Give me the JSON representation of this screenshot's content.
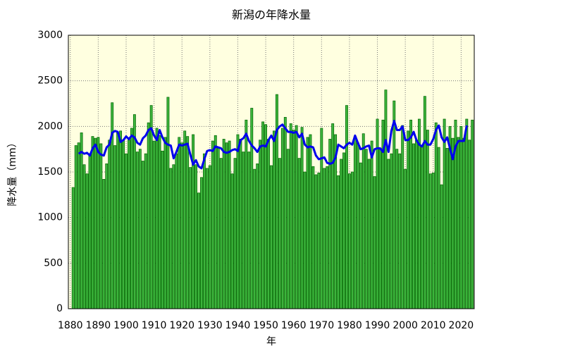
{
  "chart_data": {
    "type": "bar",
    "title": "新潟の年降水量",
    "xlabel": "年",
    "ylabel": "降水量（mm）",
    "x": [
      1881,
      1882,
      1883,
      1884,
      1885,
      1886,
      1887,
      1888,
      1889,
      1890,
      1891,
      1892,
      1893,
      1894,
      1895,
      1896,
      1897,
      1898,
      1899,
      1900,
      1901,
      1902,
      1903,
      1904,
      1905,
      1906,
      1907,
      1908,
      1909,
      1910,
      1911,
      1912,
      1913,
      1914,
      1915,
      1916,
      1917,
      1918,
      1919,
      1920,
      1921,
      1922,
      1923,
      1924,
      1925,
      1926,
      1927,
      1928,
      1929,
      1930,
      1931,
      1932,
      1933,
      1934,
      1935,
      1936,
      1937,
      1938,
      1939,
      1940,
      1941,
      1942,
      1943,
      1944,
      1945,
      1946,
      1947,
      1948,
      1949,
      1950,
      1951,
      1952,
      1953,
      1954,
      1955,
      1956,
      1957,
      1958,
      1959,
      1960,
      1961,
      1962,
      1963,
      1964,
      1965,
      1966,
      1967,
      1968,
      1969,
      1970,
      1971,
      1972,
      1973,
      1974,
      1975,
      1976,
      1977,
      1978,
      1979,
      1980,
      1981,
      1982,
      1983,
      1984,
      1985,
      1986,
      1987,
      1988,
      1989,
      1990,
      1991,
      1992,
      1993,
      1994,
      1995,
      1996,
      1997,
      1998,
      1999,
      2000,
      2001,
      2002,
      2003,
      2004,
      2005,
      2006,
      2007,
      2008,
      2009,
      2010,
      2011,
      2012,
      2013,
      2014,
      2015,
      2016,
      2017,
      2018,
      2019,
      2020,
      2021,
      2022,
      2023,
      2024
    ],
    "series": [
      {
        "type": "bar",
        "color": "#3cb43c",
        "values": [
          1330,
          1790,
          1820,
          1930,
          1580,
          1480,
          1700,
          1890,
          1870,
          1880,
          1810,
          1420,
          1590,
          1850,
          2260,
          1790,
          1930,
          1950,
          1850,
          1700,
          1850,
          1980,
          2130,
          1720,
          1750,
          1620,
          1700,
          2040,
          2230,
          1840,
          1980,
          1900,
          1730,
          1880,
          2320,
          1540,
          1580,
          1700,
          1880,
          1820,
          1950,
          1890,
          1550,
          1910,
          1580,
          1270,
          1440,
          1700,
          1540,
          1570,
          1840,
          1900,
          1760,
          1650,
          1860,
          1820,
          1840,
          1480,
          1650,
          1910,
          1860,
          1720,
          2070,
          1720,
          2200,
          1530,
          1590,
          1850,
          2050,
          2020,
          1860,
          1570,
          1950,
          2350,
          1650,
          1980,
          2100,
          1750,
          2030,
          1960,
          2010,
          1650,
          1990,
          1500,
          1880,
          1910,
          1560,
          1470,
          1490,
          1980,
          1540,
          1560,
          1860,
          2030,
          1910,
          1460,
          1640,
          1710,
          2230,
          1480,
          1500,
          1890,
          1820,
          1600,
          1920,
          1750,
          1640,
          1840,
          1450,
          2080,
          1750,
          2070,
          2400,
          1640,
          1700,
          2280,
          1750,
          1700,
          2010,
          1530,
          1950,
          2070,
          1810,
          1850,
          2080,
          1780,
          2330,
          1960,
          1480,
          1490,
          2040,
          1770,
          1360,
          2080,
          1760,
          2000,
          1870,
          2070,
          1880,
          2000,
          1870,
          2080,
          1850,
          2070
        ]
      },
      {
        "type": "line",
        "color": "#0000ee",
        "values": [
          null,
          null,
          1700,
          1720,
          1700,
          1710,
          1680,
          1760,
          1800,
          1720,
          1690,
          1680,
          1770,
          1800,
          1930,
          1950,
          1940,
          1830,
          1850,
          1890,
          1860,
          1900,
          1880,
          1820,
          1800,
          1870,
          1900,
          1960,
          1980,
          1900,
          1850,
          1960,
          1880,
          1820,
          1800,
          1790,
          1650,
          1720,
          1800,
          1790,
          1800,
          1810,
          1690,
          1580,
          1630,
          1560,
          1540,
          1640,
          1730,
          1740,
          1730,
          1780,
          1770,
          1760,
          1720,
          1710,
          1720,
          1740,
          1750,
          1730,
          1850,
          1870,
          1920,
          1840,
          1790,
          1760,
          1720,
          1780,
          1790,
          1780,
          1850,
          1900,
          1840,
          1960,
          2000,
          2020,
          1980,
          1940,
          1940,
          1930,
          1940,
          1880,
          1920,
          1800,
          1770,
          1780,
          1770,
          1680,
          1640,
          1650,
          1660,
          1600,
          1590,
          1600,
          1660,
          1800,
          1780,
          1760,
          1800,
          1820,
          1800,
          1900,
          1820,
          1750,
          1760,
          1780,
          1790,
          1660,
          1750,
          1760,
          1760,
          1720,
          1850,
          1720,
          1950,
          2060,
          1960,
          1960,
          2000,
          1850,
          1850,
          1880,
          1940,
          1850,
          1800,
          1780,
          1840,
          1800,
          1800,
          1860,
          1960,
          2010,
          1880,
          1830,
          1880,
          1760,
          1640,
          1780,
          1840,
          1840,
          1840,
          2010,
          null,
          null
        ]
      }
    ],
    "xlim": [
      1879.3,
      2024.7
    ],
    "xticks": [
      1880,
      1890,
      1900,
      1910,
      1920,
      1930,
      1940,
      1950,
      1960,
      1970,
      1980,
      1990,
      2000,
      2010,
      2020
    ],
    "ylim": [
      0,
      3000
    ],
    "yticks": [
      0,
      500,
      1000,
      1500,
      2000,
      2500,
      3000
    ],
    "grid": true,
    "background": "#ffffe0"
  }
}
